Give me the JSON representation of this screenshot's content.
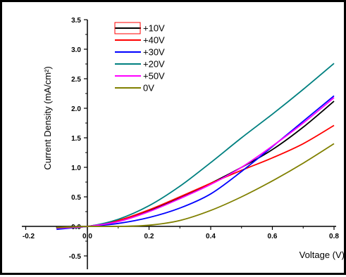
{
  "chart_data": {
    "type": "line",
    "xlabel": "Voltage (V)",
    "ylabel": "Current Density (mA/cm²)",
    "xlim": [
      -0.2,
      0.8
    ],
    "ylim": [
      -0.6,
      3.6
    ],
    "x_ticks": [
      "-0.2",
      "0.0",
      "0.2",
      "0.4",
      "0.6",
      "0.8"
    ],
    "y_ticks": [
      "-0.5",
      "0.0",
      "0.5",
      "1.0",
      "1.5",
      "2.0",
      "2.5",
      "3.0",
      "3.5"
    ],
    "legend_position": "top-left",
    "grid": false,
    "series": [
      {
        "name": "+10V",
        "color": "#000000",
        "x": [
          -0.1,
          0.0,
          0.1,
          0.2,
          0.3,
          0.4,
          0.5,
          0.6,
          0.7,
          0.8
        ],
        "y": [
          -0.03,
          0.0,
          0.1,
          0.27,
          0.49,
          0.73,
          1.0,
          1.3,
          1.68,
          2.12
        ]
      },
      {
        "name": "+40V",
        "color": "#ff0000",
        "x": [
          -0.1,
          0.0,
          0.1,
          0.2,
          0.3,
          0.4,
          0.5,
          0.6,
          0.7,
          0.8
        ],
        "y": [
          -0.03,
          0.0,
          0.1,
          0.28,
          0.5,
          0.73,
          0.95,
          1.16,
          1.4,
          1.71
        ]
      },
      {
        "name": "+30V",
        "color": "#0000ff",
        "x": [
          -0.1,
          0.0,
          0.1,
          0.2,
          0.3,
          0.4,
          0.5,
          0.6,
          0.7,
          0.8
        ],
        "y": [
          -0.05,
          0.0,
          0.05,
          0.15,
          0.31,
          0.55,
          0.93,
          1.35,
          1.78,
          2.21
        ]
      },
      {
        "name": "+20V",
        "color": "#008080",
        "x": [
          -0.1,
          0.0,
          0.1,
          0.2,
          0.3,
          0.4,
          0.5,
          0.6,
          0.7,
          0.8
        ],
        "y": [
          -0.03,
          0.0,
          0.12,
          0.35,
          0.68,
          1.08,
          1.5,
          1.9,
          2.32,
          2.76
        ]
      },
      {
        "name": "+50V",
        "color": "#ff00ff",
        "x": [
          -0.1,
          0.0,
          0.1,
          0.2,
          0.3,
          0.4,
          0.5,
          0.6,
          0.7,
          0.8
        ],
        "y": [
          -0.03,
          0.0,
          0.08,
          0.25,
          0.47,
          0.71,
          1.0,
          1.36,
          1.75,
          2.18
        ]
      },
      {
        "name": "0V",
        "color": "#808000",
        "x": [
          -0.1,
          0.0,
          0.1,
          0.2,
          0.3,
          0.4,
          0.5,
          0.6,
          0.7,
          0.8
        ],
        "y": [
          -0.02,
          0.0,
          0.0,
          0.02,
          0.1,
          0.27,
          0.5,
          0.77,
          1.07,
          1.4
        ]
      }
    ]
  }
}
